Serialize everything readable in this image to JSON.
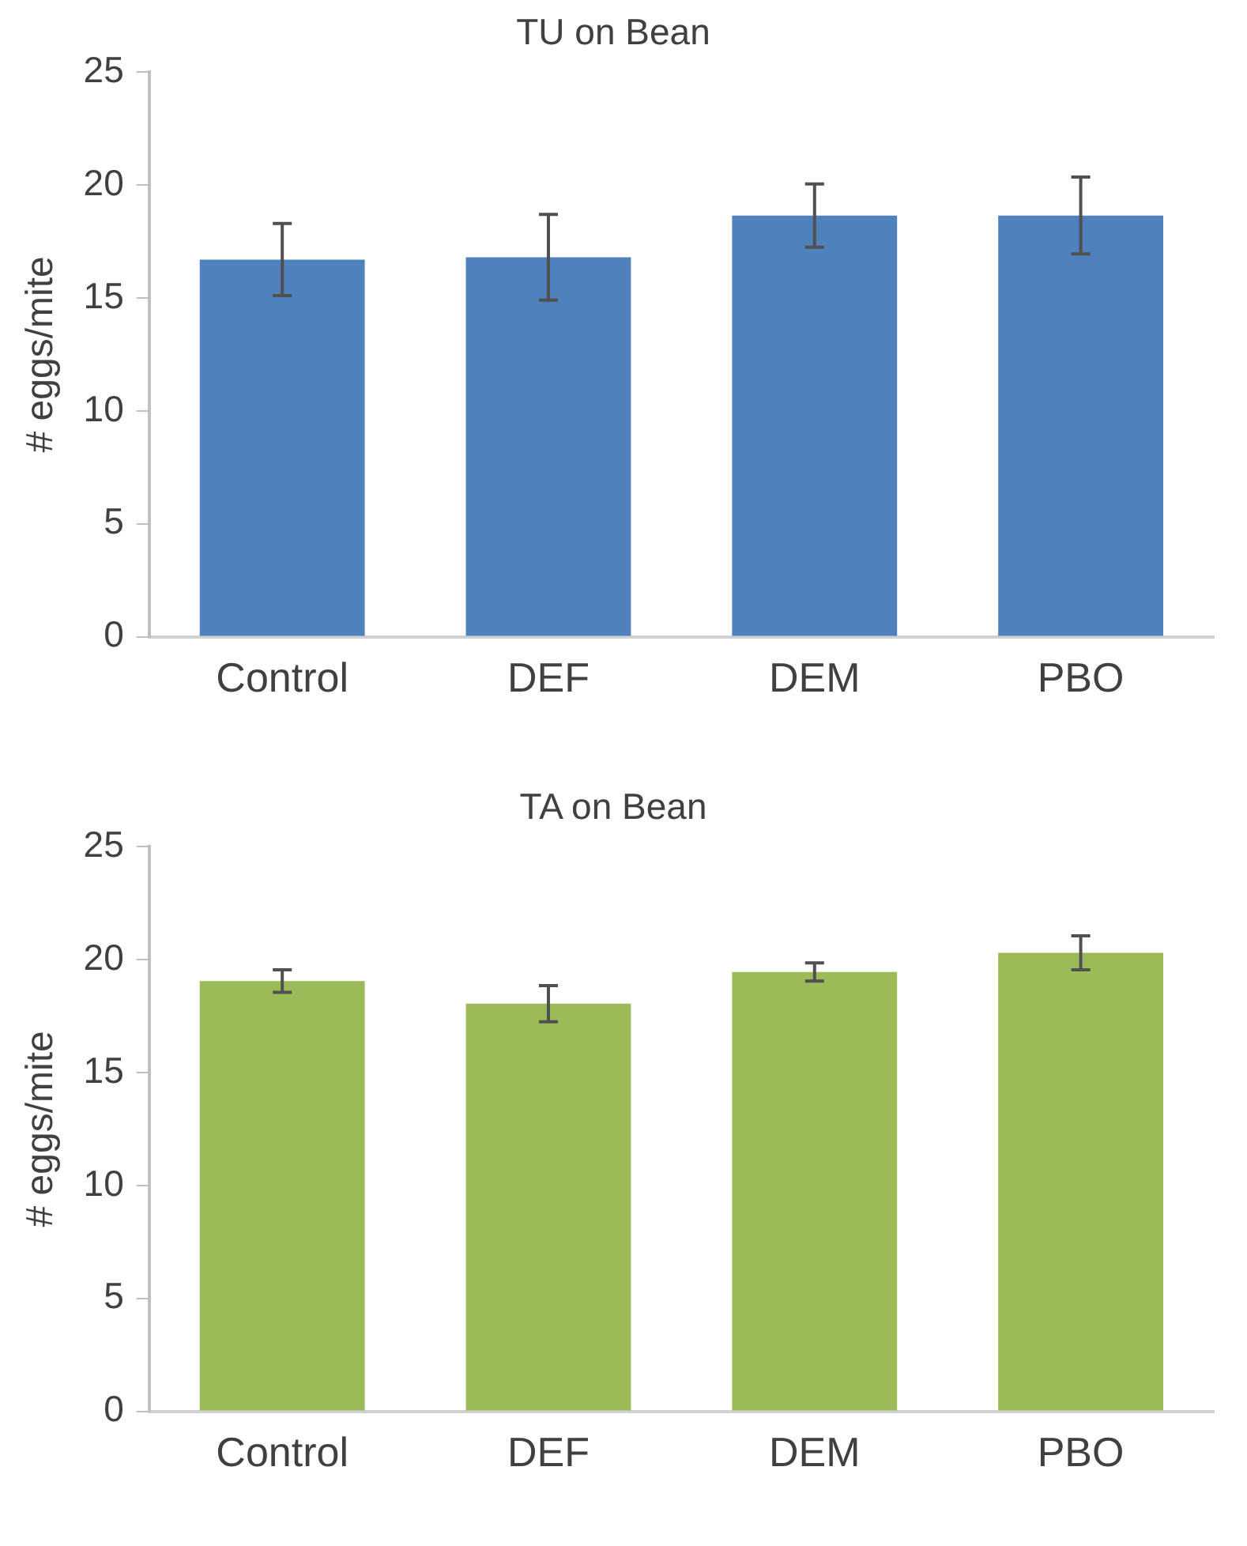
{
  "chart_data": [
    {
      "type": "bar",
      "title": "TU on Bean",
      "ylabel": "# eggs/mite",
      "categories": [
        "Control",
        "DEF",
        "DEM",
        "PBO"
      ],
      "series": [
        {
          "color": "#4f81bd",
          "values": [
            16.7,
            16.8,
            18.65,
            18.65
          ],
          "errors": [
            1.6,
            1.9,
            1.4,
            1.7
          ]
        }
      ],
      "ylim": [
        0,
        25
      ],
      "yticks": [
        0,
        5,
        10,
        15,
        20,
        25
      ],
      "grid": false,
      "legend": false
    },
    {
      "type": "bar",
      "title": "TA on Bean",
      "ylabel": "# eggs/mite",
      "categories": [
        "Control",
        "DEF",
        "DEM",
        "PBO"
      ],
      "series": [
        {
          "color": "#9bbb59",
          "values": [
            19.05,
            18.05,
            19.45,
            20.3
          ],
          "errors": [
            0.5,
            0.8,
            0.4,
            0.75
          ]
        }
      ],
      "ylim": [
        0,
        25
      ],
      "yticks": [
        0,
        5,
        10,
        15,
        20,
        25
      ],
      "grid": false,
      "legend": false
    }
  ]
}
